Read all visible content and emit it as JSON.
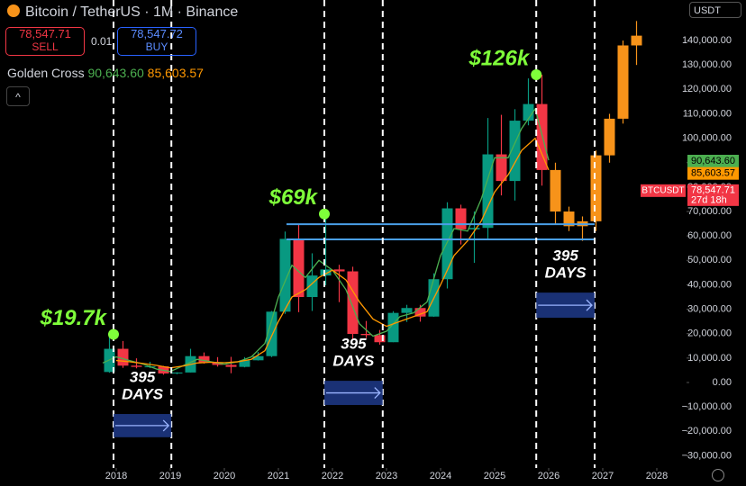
{
  "header": {
    "title": "Bitcoin / TetherUS · 1M · Binance",
    "sell_price": "78,547.71",
    "sell_label": "SELL",
    "spread": "0.01",
    "buy_price": "78,547.72",
    "buy_label": "BUY",
    "indicator_name": "Golden Cross",
    "indicator_fast": "90,643.60",
    "indicator_slow": "85,603.57",
    "currency": "USDT"
  },
  "chart_data": {
    "type": "candlestick",
    "xlim": [
      2015.85,
      2028.55
    ],
    "ylim": [
      -35000,
      156600
    ],
    "xticks": [
      2018,
      2019,
      2020,
      2021,
      2022,
      2023,
      2024,
      2025,
      2026,
      2027,
      2028
    ],
    "yticks": [
      {
        "value": -30000,
        "label": "−30,000.00"
      },
      {
        "value": -20000,
        "label": "−20,000.00"
      },
      {
        "value": -10000,
        "label": "−10,000.00"
      },
      {
        "value": 0,
        "label": "0.00"
      },
      {
        "value": 10000,
        "label": "10,000.00"
      },
      {
        "value": 20000,
        "label": "20,000.00"
      },
      {
        "value": 30000,
        "label": "30,000.00"
      },
      {
        "value": 40000,
        "label": "40,000.00"
      },
      {
        "value": 50000,
        "label": "50,000.00"
      },
      {
        "value": 60000,
        "label": "60,000.00"
      },
      {
        "value": 70000,
        "label": "70,000.00"
      },
      {
        "value": 80000,
        "label": "80,000.00"
      },
      {
        "value": 90000,
        "label": "90,000.00"
      },
      {
        "value": 100000,
        "label": "100,000.00"
      },
      {
        "value": 110000,
        "label": "110,000.00"
      },
      {
        "value": 120000,
        "label": "120,000.00"
      },
      {
        "value": 130000,
        "label": "130,000.00"
      },
      {
        "value": 140000,
        "label": "140,000.00"
      }
    ],
    "candles": {
      "up_color": "#089981",
      "down_color": "#f23645",
      "x": [
        2017.75,
        2018.0,
        2018.25,
        2018.5,
        2018.75,
        2019.0,
        2019.25,
        2019.5,
        2019.75,
        2020.0,
        2020.25,
        2020.5,
        2020.75,
        2021.0,
        2021.25,
        2021.5,
        2021.75,
        2022.0,
        2022.25,
        2022.5,
        2022.75,
        2023.0,
        2023.25,
        2023.5,
        2023.75,
        2024.0,
        2024.25,
        2024.5,
        2024.75,
        2025.0,
        2025.25,
        2025.5,
        2025.75
      ],
      "open": [
        4300,
        13800,
        6900,
        6400,
        6600,
        3700,
        4100,
        10800,
        8300,
        7200,
        6400,
        9100,
        10800,
        29000,
        58800,
        35000,
        43800,
        46300,
        45500,
        19900,
        19400,
        16500,
        28500,
        30500,
        27000,
        42300,
        71300,
        62700,
        63300,
        93400,
        82500,
        107200,
        114000
      ],
      "high": [
        19700,
        17000,
        9900,
        8500,
        6800,
        4200,
        13800,
        12300,
        10400,
        10500,
        10400,
        12500,
        29300,
        61800,
        64900,
        52900,
        69000,
        48200,
        47400,
        25200,
        21500,
        29200,
        31800,
        31800,
        44700,
        73800,
        72800,
        70000,
        108300,
        109600,
        111900,
        124500,
        126000
      ],
      "low": [
        4000,
        6000,
        5800,
        5900,
        3200,
        3400,
        4100,
        7700,
        6500,
        3800,
        6200,
        9000,
        10400,
        28100,
        28800,
        29300,
        39800,
        32900,
        17600,
        18200,
        15500,
        16500,
        24800,
        24900,
        26900,
        38500,
        56500,
        49000,
        58900,
        76600,
        74500,
        105300,
        80600
      ],
      "close": [
        13800,
        6900,
        6400,
        6600,
        3700,
        4100,
        10800,
        8300,
        7200,
        6400,
        9100,
        10800,
        29000,
        58800,
        35000,
        43800,
        46300,
        45500,
        19900,
        19400,
        16500,
        28500,
        30500,
        27000,
        42300,
        71300,
        62700,
        63300,
        93400,
        82500,
        107200,
        114000,
        87000
      ]
    },
    "projection": {
      "color": "#f7931a",
      "x": [
        2026.0,
        2026.25,
        2026.5,
        2026.75,
        2027.0,
        2027.25,
        2027.5
      ],
      "open": [
        87000,
        70000,
        64000,
        66000,
        93000,
        108000,
        138000
      ],
      "high": [
        90000,
        72000,
        68000,
        95000,
        110000,
        140000,
        148000
      ],
      "low": [
        65000,
        62000,
        58000,
        62000,
        90000,
        106000,
        130000
      ],
      "close": [
        70000,
        64000,
        66000,
        93000,
        108000,
        138000,
        142000
      ]
    },
    "ma_fast": {
      "color": "#4caf50",
      "x": [
        2017.75,
        2018.0,
        2018.25,
        2018.5,
        2018.75,
        2019.0,
        2019.25,
        2019.5,
        2019.75,
        2020.0,
        2020.25,
        2020.5,
        2020.75,
        2021.0,
        2021.25,
        2021.5,
        2021.75,
        2022.0,
        2022.25,
        2022.5,
        2022.75,
        2023.0,
        2023.25,
        2023.5,
        2023.75,
        2024.0,
        2024.25,
        2024.5,
        2024.75,
        2025.0,
        2025.25,
        2025.5,
        2025.75,
        2026.0
      ],
      "values": [
        8000,
        10500,
        9000,
        7500,
        5500,
        4500,
        7000,
        9500,
        8500,
        7500,
        8500,
        10500,
        16000,
        35000,
        48000,
        43000,
        50000,
        46000,
        38000,
        24000,
        19000,
        21000,
        27000,
        28500,
        33000,
        52000,
        63000,
        62000,
        75000,
        92000,
        92000,
        104000,
        112000,
        91000
      ]
    },
    "ma_slow": {
      "color": "#ff9800",
      "x": [
        2018.0,
        2018.25,
        2018.5,
        2018.75,
        2019.0,
        2019.25,
        2019.5,
        2019.75,
        2020.0,
        2020.25,
        2020.5,
        2020.75,
        2021.0,
        2021.25,
        2021.5,
        2021.75,
        2022.0,
        2022.25,
        2022.5,
        2022.75,
        2023.0,
        2023.25,
        2023.5,
        2023.75,
        2024.0,
        2024.25,
        2024.5,
        2024.75,
        2025.0,
        2025.25,
        2025.5,
        2025.75,
        2026.0
      ],
      "values": [
        9000,
        8500,
        7800,
        7000,
        6000,
        6800,
        8000,
        8300,
        8100,
        8500,
        9500,
        13000,
        25000,
        35000,
        38000,
        43000,
        46000,
        42000,
        33000,
        26000,
        23000,
        25000,
        27000,
        29000,
        40000,
        52000,
        58000,
        66000,
        78000,
        85000,
        95000,
        100000,
        87000
      ]
    },
    "cycle_lines": [
      2017.95,
      2019.02,
      2021.85,
      2022.93,
      2025.77,
      2026.85
    ],
    "levels": {
      "x_start": 2021.15,
      "x_end": 2026.85,
      "values": [
        64800,
        58600
      ],
      "color": "#4a9fe8"
    },
    "peaks": [
      {
        "x": 2017.95,
        "y": 19700,
        "label": "$19.7k"
      },
      {
        "x": 2021.85,
        "y": 69000,
        "label": "$69k"
      },
      {
        "x": 2025.77,
        "y": 126000,
        "label": "$126k"
      }
    ],
    "spans": [
      {
        "x0": 2017.95,
        "x1": 2019.02,
        "y0": -12900,
        "y1": -22400,
        "label": [
          "395",
          "DAYS"
        ]
      },
      {
        "x0": 2021.85,
        "x1": 2022.93,
        "y0": 700,
        "y1": -9200,
        "label": [
          "395",
          "DAYS"
        ]
      },
      {
        "x0": 2025.77,
        "x1": 2026.85,
        "y0": 36800,
        "y1": 26500,
        "label": [
          "395",
          "DAYS"
        ]
      }
    ],
    "price_tags": [
      {
        "value": 90643.6,
        "label": "90,643.60",
        "color": "#4caf50"
      },
      {
        "value": 85603.57,
        "label": "85,603.57",
        "color": "#ff9800"
      }
    ],
    "last_price": {
      "value": 78547.71,
      "symbol": "BTCUSDT",
      "label": "78,547.71",
      "countdown": "27d 18h",
      "color": "#f23645"
    }
  }
}
